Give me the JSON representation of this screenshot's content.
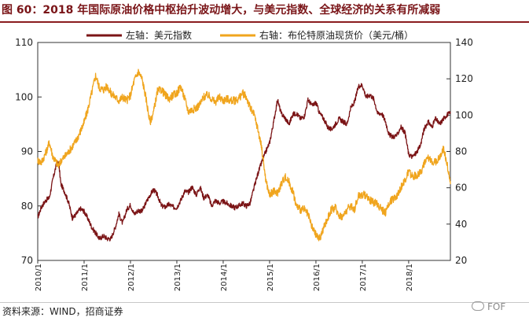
{
  "title": "图 60：2018 年国际原油价格中枢抬升波动增大，与美元指数、全球经济的关系有所减弱",
  "source": "资料来源：WIND，招商证券",
  "watermark": "FOF",
  "colors": {
    "title": "#7a1518",
    "usd": "#7b1416",
    "oil": "#f0a51e",
    "axis": "#333333"
  },
  "chart_data": {
    "type": "line",
    "title": "图 60：2018 年国际原油价格中枢抬升波动增大，与美元指数、全球经济的关系有所减弱",
    "x_tick_labels": [
      "2010/1",
      "2011/1",
      "2012/1",
      "2013/1",
      "2014/1",
      "2015/1",
      "2016/1",
      "2017/1",
      "2018/1"
    ],
    "x_range": [
      2010.0,
      2018.9
    ],
    "y_left_range": [
      70,
      110
    ],
    "y_left_ticks": [
      70,
      80,
      90,
      100,
      110
    ],
    "y_right_range": [
      20,
      140
    ],
    "y_right_ticks": [
      20,
      40,
      60,
      80,
      100,
      120,
      140
    ],
    "grid": false,
    "legend_position": "top",
    "series": [
      {
        "name": "左轴：美元指数",
        "axis": "left",
        "x": [
          2010.0,
          2010.08,
          2010.17,
          2010.25,
          2010.33,
          2010.4,
          2010.45,
          2010.5,
          2010.58,
          2010.67,
          2010.75,
          2010.83,
          2010.92,
          2011.0,
          2011.08,
          2011.17,
          2011.25,
          2011.33,
          2011.42,
          2011.5,
          2011.58,
          2011.67,
          2011.75,
          2011.83,
          2011.92,
          2012.0,
          2012.08,
          2012.17,
          2012.25,
          2012.33,
          2012.42,
          2012.5,
          2012.58,
          2012.67,
          2012.75,
          2012.83,
          2012.92,
          2013.0,
          2013.08,
          2013.17,
          2013.25,
          2013.33,
          2013.42,
          2013.5,
          2013.58,
          2013.67,
          2013.75,
          2013.83,
          2013.92,
          2014.0,
          2014.08,
          2014.17,
          2014.25,
          2014.33,
          2014.42,
          2014.5,
          2014.58,
          2014.67,
          2014.75,
          2014.83,
          2014.92,
          2015.0,
          2015.08,
          2015.17,
          2015.25,
          2015.33,
          2015.42,
          2015.5,
          2015.58,
          2015.67,
          2015.75,
          2015.83,
          2015.92,
          2016.0,
          2016.08,
          2016.17,
          2016.25,
          2016.33,
          2016.42,
          2016.5,
          2016.58,
          2016.67,
          2016.75,
          2016.83,
          2016.92,
          2017.0,
          2017.08,
          2017.17,
          2017.25,
          2017.33,
          2017.42,
          2017.5,
          2017.58,
          2017.67,
          2017.75,
          2017.83,
          2017.92,
          2018.0,
          2018.08,
          2018.17,
          2018.25,
          2018.33,
          2018.42,
          2018.5,
          2018.58,
          2018.67,
          2018.75,
          2018.83,
          2018.9
        ],
        "y": [
          77.9,
          79.8,
          81.0,
          81.5,
          85.0,
          87.5,
          88.0,
          84.0,
          82.6,
          80.5,
          77.7,
          78.5,
          79.5,
          79.0,
          77.7,
          76.0,
          75.0,
          74.0,
          74.5,
          74.0,
          74.0,
          76.0,
          78.5,
          76.8,
          79.3,
          80.2,
          78.5,
          79.2,
          79.0,
          80.5,
          82.0,
          83.0,
          82.0,
          80.0,
          79.8,
          80.3,
          79.8,
          79.7,
          81.0,
          82.7,
          82.5,
          83.5,
          82.0,
          83.5,
          81.5,
          82.0,
          80.0,
          81.0,
          80.5,
          80.8,
          80.5,
          80.0,
          79.7,
          80.0,
          80.5,
          80.0,
          80.5,
          83.5,
          86.0,
          88.0,
          90.0,
          91.6,
          95.0,
          99.5,
          97.0,
          96.2,
          95.0,
          96.8,
          97.0,
          96.0,
          96.5,
          99.5,
          98.4,
          99.0,
          97.0,
          96.0,
          94.5,
          94.0,
          95.0,
          96.0,
          95.5,
          95.0,
          98.0,
          99.0,
          102.0,
          102.2,
          100.0,
          100.4,
          99.6,
          97.0,
          97.0,
          95.5,
          93.0,
          92.7,
          93.0,
          94.5,
          93.5,
          89.5,
          89.0,
          89.8,
          91.0,
          94.0,
          95.5,
          94.5,
          96.0,
          95.0,
          96.0,
          96.8,
          97.0
        ]
      },
      {
        "name": "右轴：布伦特原油现货价（美元/桶）",
        "axis": "right",
        "x": [
          2010.0,
          2010.08,
          2010.17,
          2010.25,
          2010.33,
          2010.4,
          2010.45,
          2010.5,
          2010.58,
          2010.67,
          2010.75,
          2010.83,
          2010.92,
          2011.0,
          2011.08,
          2011.17,
          2011.25,
          2011.33,
          2011.42,
          2011.5,
          2011.58,
          2011.67,
          2011.75,
          2011.83,
          2011.92,
          2012.0,
          2012.08,
          2012.17,
          2012.25,
          2012.33,
          2012.42,
          2012.5,
          2012.58,
          2012.67,
          2012.75,
          2012.83,
          2012.92,
          2013.0,
          2013.08,
          2013.17,
          2013.25,
          2013.33,
          2013.42,
          2013.5,
          2013.58,
          2013.67,
          2013.75,
          2013.83,
          2013.92,
          2014.0,
          2014.08,
          2014.17,
          2014.25,
          2014.33,
          2014.42,
          2014.5,
          2014.58,
          2014.67,
          2014.75,
          2014.83,
          2014.92,
          2015.0,
          2015.08,
          2015.17,
          2015.25,
          2015.33,
          2015.42,
          2015.5,
          2015.58,
          2015.67,
          2015.75,
          2015.83,
          2015.92,
          2016.0,
          2016.08,
          2016.17,
          2016.25,
          2016.33,
          2016.42,
          2016.5,
          2016.58,
          2016.67,
          2016.75,
          2016.83,
          2016.92,
          2017.0,
          2017.08,
          2017.17,
          2017.25,
          2017.33,
          2017.42,
          2017.5,
          2017.58,
          2017.67,
          2017.75,
          2017.83,
          2017.92,
          2018.0,
          2018.08,
          2018.17,
          2018.25,
          2018.33,
          2018.42,
          2018.5,
          2018.58,
          2018.67,
          2018.75,
          2018.83,
          2018.9
        ],
        "y": [
          75,
          74,
          79,
          85,
          77,
          74,
          72,
          75,
          77,
          80,
          83,
          86,
          91,
          96,
          103,
          113,
          122,
          115,
          114,
          116,
          112,
          110,
          108,
          110,
          108,
          111,
          119,
          124,
          120,
          110,
          96,
          102,
          113,
          114,
          111,
          109,
          111,
          112,
          116,
          109,
          102,
          103,
          104,
          106,
          110,
          111,
          109,
          107,
          110,
          108,
          109,
          108,
          108,
          109,
          112,
          110,
          104,
          100,
          92,
          82,
          64,
          56,
          58,
          57,
          62,
          66,
          63,
          58,
          50,
          48,
          48,
          45,
          38,
          34,
          32,
          38,
          43,
          48,
          49,
          45,
          44,
          48,
          50,
          48,
          56,
          56,
          56,
          53,
          52,
          51,
          48,
          46,
          52,
          54,
          56,
          60,
          64,
          69,
          66,
          67,
          68,
          73,
          76,
          75,
          74,
          77,
          82,
          73,
          62
        ]
      }
    ]
  }
}
